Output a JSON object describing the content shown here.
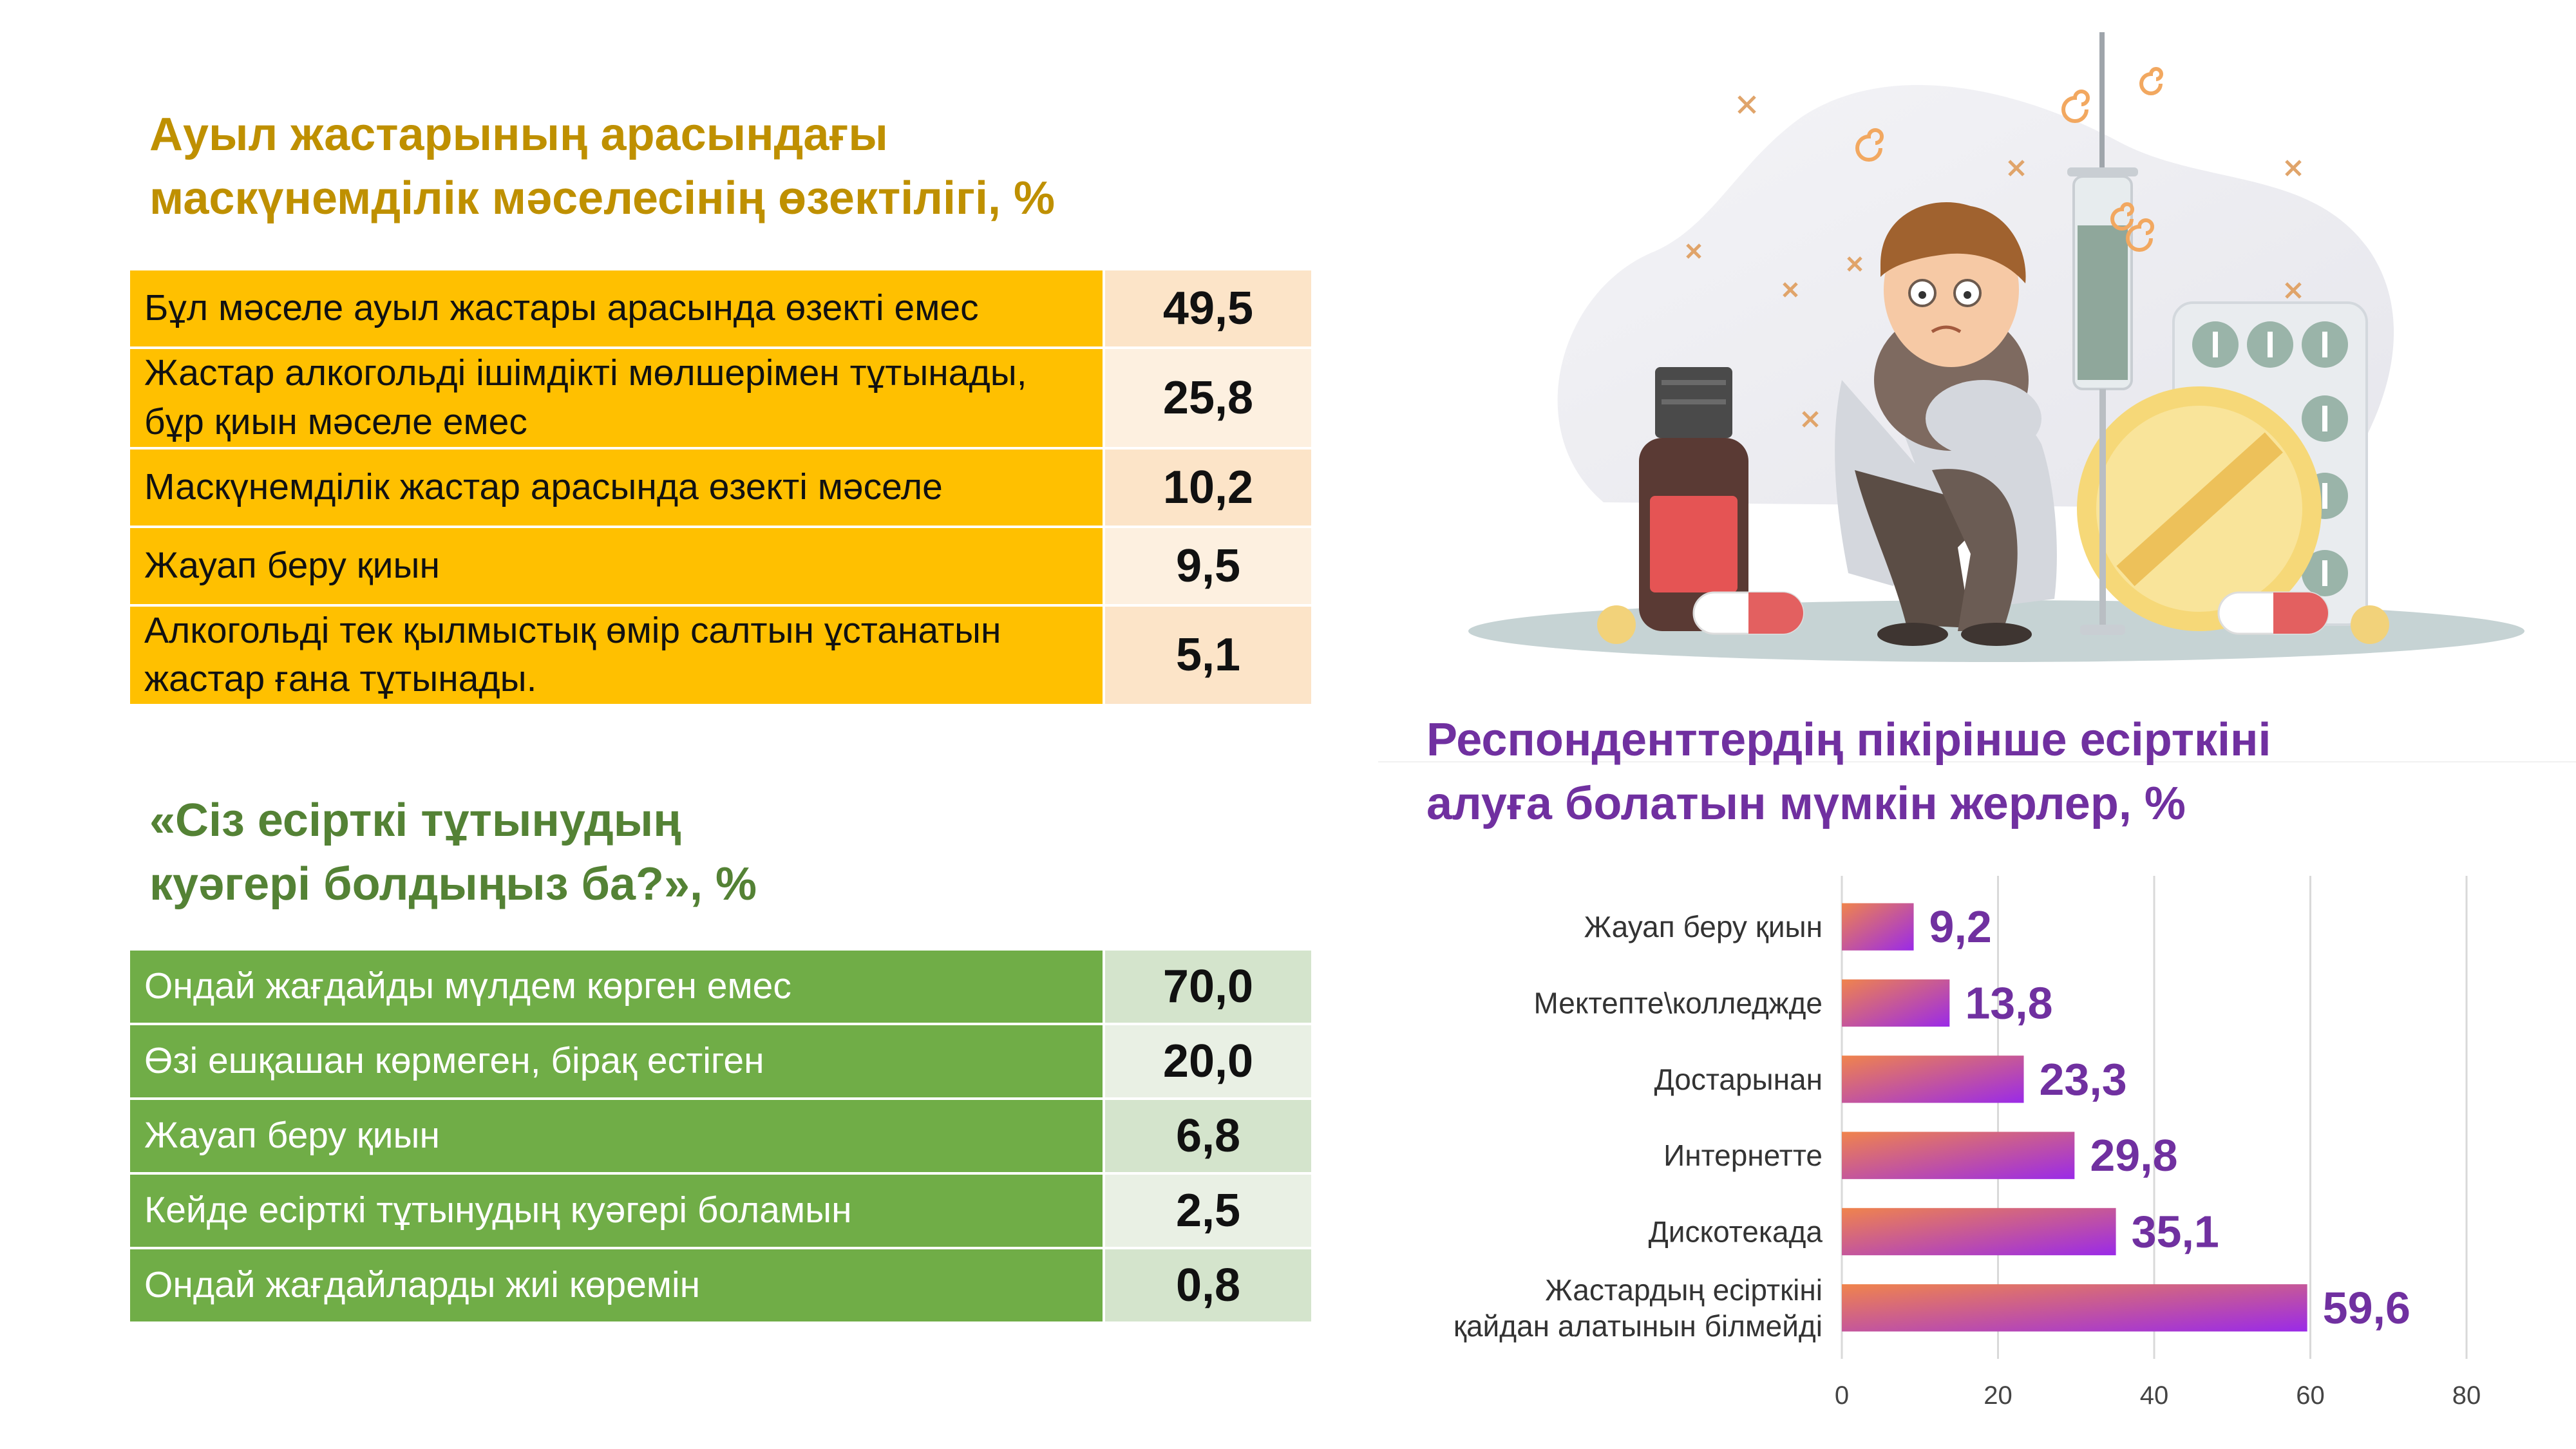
{
  "table1": {
    "title_lines": [
      "Ауыл жастарының арасындағы",
      "маскүнемділік мәселесінің өзектілігі, %"
    ],
    "rows": [
      {
        "label_lines": [
          "Бұл мәселе ауыл жастары арасында өзекті емес"
        ],
        "value": "49,5"
      },
      {
        "label_lines": [
          "Жастар алкогольді ішімдікті мөлшерімен тұтынады,",
          "бұр қиын мәселе емес"
        ],
        "value": "25,8"
      },
      {
        "label_lines": [
          "Маскүнемділік жастар арасында өзекті мәселе"
        ],
        "value": "10,2"
      },
      {
        "label_lines": [
          "Жауап беру қиын"
        ],
        "value": "9,5"
      },
      {
        "label_lines": [
          "Алкогольді тек қылмыстық өмір салтын ұстанатын",
          "жастар ғана тұтынады."
        ],
        "value": "5,1"
      }
    ],
    "colors": {
      "label_bg": "#FFC000",
      "value_bg": "#FCE4C8",
      "title": "#BF9000"
    }
  },
  "table2": {
    "title_lines": [
      "«Сіз есірткі тұтынудың",
      "куәгері болдыңыз ба?», %"
    ],
    "rows": [
      {
        "label_lines": [
          "Ондай жағдайды мүлдем көрген емес"
        ],
        "value": "70,0"
      },
      {
        "label_lines": [
          "Өзі ешқашан көрмеген, бірақ естіген"
        ],
        "value": "20,0"
      },
      {
        "label_lines": [
          "Жауап беру қиын"
        ],
        "value": "6,8"
      },
      {
        "label_lines": [
          "Кейде есірткі тұтынудың куәгері боламын"
        ],
        "value": "2,5"
      },
      {
        "label_lines": [
          "Ондай жағдайларды жиі көремін"
        ],
        "value": "0,8"
      }
    ],
    "colors": {
      "label_bg": "#70AD47",
      "value_bg": "#D4E4CC",
      "title": "#548235"
    }
  },
  "illustration": {
    "icon": "sad-boy-with-pills-syringe-illustration"
  },
  "chart_data": {
    "type": "bar",
    "orientation": "horizontal",
    "title_lines": [
      "Респонденттердің пікірінше есірткіні",
      "алуға болатын мүмкін жерлер, %"
    ],
    "categories": [
      [
        "Жауап беру қиын"
      ],
      [
        "Мектепте\\колледжде"
      ],
      [
        "Достарынан"
      ],
      [
        "Интернетте"
      ],
      [
        "Дискотекада"
      ],
      [
        "Жастардың есірткіні",
        "қайдан алатынын білмейді"
      ]
    ],
    "values": [
      9.2,
      13.8,
      23.3,
      29.8,
      35.1,
      59.6
    ],
    "data_labels": [
      "9,2",
      "13,8",
      "23,3",
      "29,8",
      "35,1",
      "59,6"
    ],
    "xlim": [
      0,
      80
    ],
    "xticks": [
      0,
      20,
      40,
      60,
      80
    ],
    "grid": true,
    "legend": "none",
    "colors": {
      "bar_start": "#F0844C",
      "bar_end": "#9A2AE8",
      "label": "#7030A0",
      "title": "#7030A0"
    }
  }
}
